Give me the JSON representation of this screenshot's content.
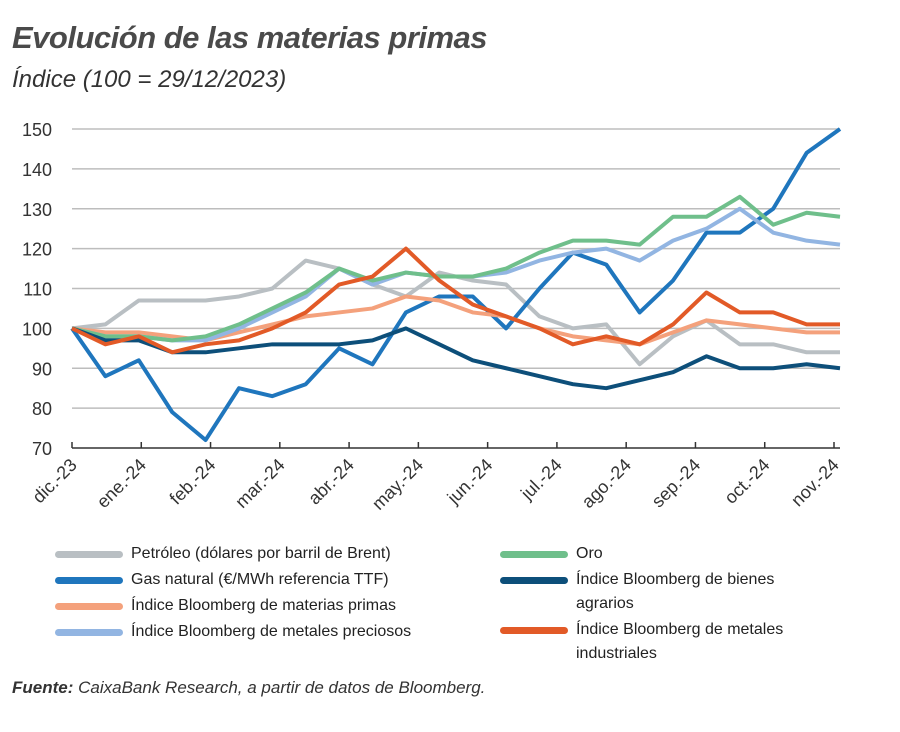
{
  "title": "Evolución de las materias primas",
  "subtitle": "Índice (100 = 29/12/2023)",
  "source_label": "Fuente:",
  "source_text": " CaixaBank Research, a partir de datos de Bloomberg.",
  "chart_data": {
    "type": "line",
    "title": "Evolución de las materias primas",
    "ylabel": "Índice (100 = 29/12/2023)",
    "ylim": [
      70,
      150
    ],
    "yticks": [
      150,
      140,
      130,
      120,
      110,
      100,
      90,
      80,
      70
    ],
    "xtick_labels": [
      "dic.-23",
      "ene.-24",
      "feb.-24",
      "mar.-24",
      "abr.-24",
      "may.-24",
      "jun.-24",
      "jul.-24",
      "ago.-24",
      "sep.-24",
      "oct.-24",
      "nov.-24"
    ],
    "grid": true,
    "legend_position": "bottom",
    "x": [
      "2023-12-29",
      "2024-01-15",
      "2024-01-31",
      "2024-02-15",
      "2024-02-29",
      "2024-03-15",
      "2024-03-29",
      "2024-04-15",
      "2024-04-30",
      "2024-05-15",
      "2024-05-31",
      "2024-06-14",
      "2024-06-28",
      "2024-07-15",
      "2024-07-31",
      "2024-08-15",
      "2024-08-30",
      "2024-09-13",
      "2024-09-30",
      "2024-10-15",
      "2024-10-31",
      "2024-11-15",
      "2024-11-29",
      "2024-12-03"
    ],
    "series": [
      {
        "name": "Petróleo (dólares por barril de Brent)",
        "color": "#b9bfc3",
        "values": [
          100,
          101,
          107,
          107,
          107,
          108,
          110,
          117,
          115,
          111,
          108,
          114,
          112,
          111,
          103,
          100,
          101,
          91,
          98,
          102,
          96,
          96,
          94,
          94
        ]
      },
      {
        "name": "Gas natural (€/MWh referencia TTF)",
        "color": "#1f76bd",
        "values": [
          100,
          88,
          92,
          79,
          72,
          85,
          83,
          86,
          95,
          91,
          104,
          108,
          108,
          100,
          110,
          119,
          116,
          104,
          112,
          124,
          124,
          130,
          144,
          150
        ]
      },
      {
        "name": "Índice Bloomberg de materias primas",
        "color": "#f4a17c",
        "values": [
          100,
          99,
          99,
          98,
          97,
          99,
          101,
          103,
          104,
          105,
          108,
          107,
          104,
          103,
          100,
          98,
          97,
          96,
          99,
          102,
          101,
          100,
          99,
          99
        ]
      },
      {
        "name": "Índice Bloomberg de metales preciosos",
        "color": "#92b5e2",
        "values": [
          100,
          98,
          98,
          97,
          97,
          100,
          104,
          108,
          115,
          111,
          114,
          113,
          113,
          114,
          117,
          119,
          120,
          117,
          122,
          125,
          130,
          124,
          122,
          121
        ]
      },
      {
        "name": "Oro",
        "color": "#6fbf8b",
        "values": [
          100,
          98,
          98,
          97,
          98,
          101,
          105,
          109,
          115,
          112,
          114,
          113,
          113,
          115,
          119,
          122,
          122,
          121,
          128,
          128,
          133,
          126,
          129,
          128
        ]
      },
      {
        "name": "Índice Bloomberg de bienes agrarios",
        "color": "#0d4f7a",
        "values": [
          100,
          97,
          97,
          94,
          94,
          95,
          96,
          96,
          96,
          97,
          100,
          96,
          92,
          90,
          88,
          86,
          85,
          87,
          89,
          93,
          90,
          90,
          91,
          90
        ]
      },
      {
        "name": "Índice Bloomberg de metales industriales",
        "color": "#e25a27",
        "values": [
          100,
          96,
          98,
          94,
          96,
          97,
          100,
          104,
          111,
          113,
          120,
          112,
          106,
          103,
          100,
          96,
          98,
          96,
          101,
          109,
          104,
          104,
          101,
          101
        ]
      }
    ]
  }
}
